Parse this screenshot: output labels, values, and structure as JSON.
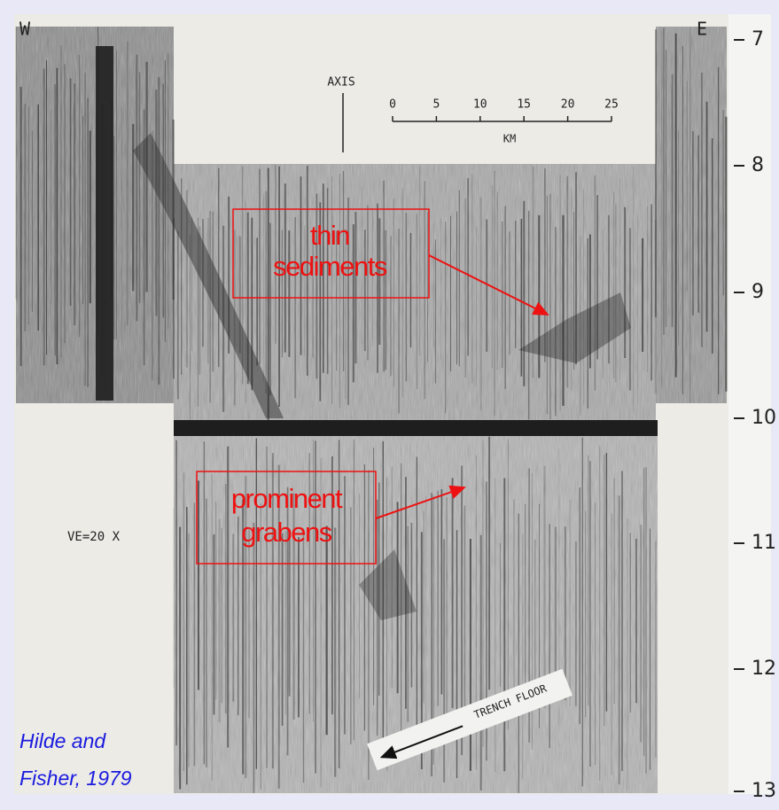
{
  "profile": {
    "west": "W",
    "east": "E"
  },
  "depth_scale": [
    "7",
    "8",
    "9",
    "10",
    "11",
    "12",
    "13"
  ],
  "scale_bar": {
    "title": "AXIS",
    "unit": "KM",
    "ticks": [
      "0",
      "5",
      "10",
      "15",
      "20",
      "25"
    ]
  },
  "annotations": [
    {
      "lines": [
        "thin",
        "sediments"
      ]
    },
    {
      "lines": [
        "prominent",
        "grabens"
      ]
    }
  ],
  "vertical_exaggeration": "VE=20 X",
  "trench_label": "TRENCH FLOOR",
  "citation": [
    "Hilde and",
    "Fisher, 1979"
  ]
}
